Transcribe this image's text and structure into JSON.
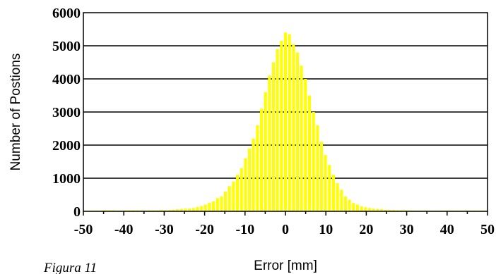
{
  "chart_data": {
    "type": "bar",
    "title": "",
    "xlabel": "Error [mm]",
    "ylabel": "Number of Postions",
    "xlim": [
      -50,
      50
    ],
    "ylim": [
      0,
      6000
    ],
    "x_ticks": [
      "-50",
      "-40",
      "-30",
      "-20",
      "-10",
      "0",
      "10",
      "20",
      "30",
      "40",
      "50"
    ],
    "y_ticks": [
      "0",
      "1000",
      "2000",
      "3000",
      "4000",
      "5000",
      "6000"
    ],
    "grid": "horizontal",
    "bar_color": "#FFFF00",
    "x": [
      -50,
      -49,
      -48,
      -47,
      -46,
      -45,
      -44,
      -43,
      -42,
      -41,
      -40,
      -39,
      -38,
      -37,
      -36,
      -35,
      -34,
      -33,
      -32,
      -31,
      -30,
      -29,
      -28,
      -27,
      -26,
      -25,
      -24,
      -23,
      -22,
      -21,
      -20,
      -19,
      -18,
      -17,
      -16,
      -15,
      -14,
      -13,
      -12,
      -11,
      -10,
      -9,
      -8,
      -7,
      -6,
      -5,
      -4,
      -3,
      -2,
      -1,
      0,
      1,
      2,
      3,
      4,
      5,
      6,
      7,
      8,
      9,
      10,
      11,
      12,
      13,
      14,
      15,
      16,
      17,
      18,
      19,
      20,
      21,
      22,
      23,
      24,
      25,
      26,
      27,
      28,
      29,
      30,
      31,
      32,
      33,
      34,
      35,
      36,
      37,
      38,
      39,
      40,
      41,
      42,
      43,
      44,
      45,
      46,
      47,
      48,
      49,
      50
    ],
    "values": [
      20,
      20,
      20,
      20,
      20,
      30,
      30,
      30,
      20,
      20,
      30,
      30,
      30,
      30,
      30,
      20,
      30,
      30,
      30,
      40,
      30,
      40,
      50,
      60,
      70,
      80,
      80,
      100,
      130,
      160,
      200,
      260,
      300,
      400,
      450,
      600,
      760,
      900,
      1100,
      1300,
      1600,
      1900,
      2200,
      2600,
      3100,
      3600,
      4100,
      4500,
      4900,
      5150,
      5400,
      5350,
      5050,
      4800,
      4400,
      4000,
      3500,
      3000,
      2600,
      2100,
      1700,
      1400,
      1100,
      850,
      650,
      450,
      350,
      250,
      200,
      150,
      120,
      100,
      80,
      70,
      60,
      50,
      40,
      40,
      30,
      30,
      30,
      30,
      20,
      20,
      20,
      20,
      20,
      20,
      20,
      20,
      20,
      20,
      20,
      20,
      20,
      20,
      20,
      20,
      20,
      20,
      20
    ]
  },
  "caption": "Figura 11"
}
